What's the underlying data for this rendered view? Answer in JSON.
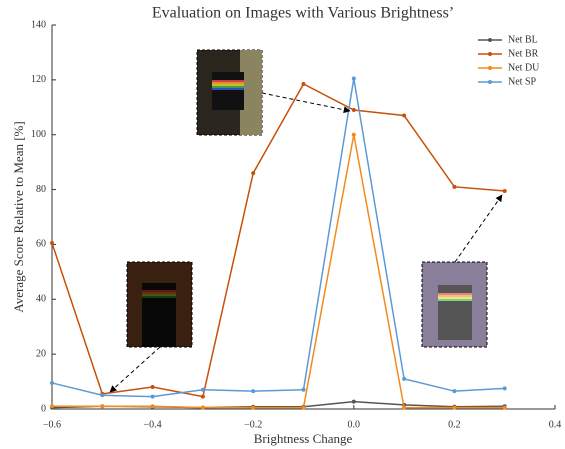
{
  "chart_data": {
    "type": "line",
    "title": "Evaluation on Images with Various Brightness’",
    "x_label": "Brightness Change",
    "y_label": "Average Score Relative to Mean [%]",
    "x": [
      -0.6,
      -0.5,
      -0.4,
      -0.3,
      -0.2,
      -0.1,
      0,
      0.1,
      0.2,
      0.3
    ],
    "series": [
      {
        "name": "Net BL",
        "color": "#555555",
        "values": [
          0.5,
          1,
          0.8,
          0.5,
          0.8,
          0.8,
          2.7,
          1.5,
          0.8,
          1
        ]
      },
      {
        "name": "Net BR",
        "color": "#c8500a",
        "values": [
          60.5,
          5.5,
          8,
          4.5,
          86,
          118.5,
          109,
          107,
          81,
          79.5
        ]
      },
      {
        "name": "Net DU",
        "color": "#f28a1e",
        "values": [
          1,
          1,
          1,
          0.5,
          0.5,
          0.5,
          100,
          0.5,
          0.5,
          0.5
        ]
      },
      {
        "name": "Net SP",
        "color": "#5b9bd5",
        "values": [
          9.5,
          5,
          4.5,
          7,
          6.5,
          7,
          120.5,
          11,
          6.5,
          7.5
        ]
      }
    ],
    "xlim": [
      -0.6,
      0.4
    ],
    "xticks": [
      {
        "value": -0.6,
        "label": "−0.6"
      },
      {
        "value": -0.4,
        "label": "−0.4"
      },
      {
        "value": -0.2,
        "label": "−0.2"
      },
      {
        "value": 0,
        "label": "0.0"
      },
      0.2,
      0.4
    ],
    "ylim": [
      0,
      140
    ],
    "yticks": [
      0,
      20,
      40,
      60,
      80,
      100,
      120,
      140
    ],
    "legend": "upper right"
  }
}
